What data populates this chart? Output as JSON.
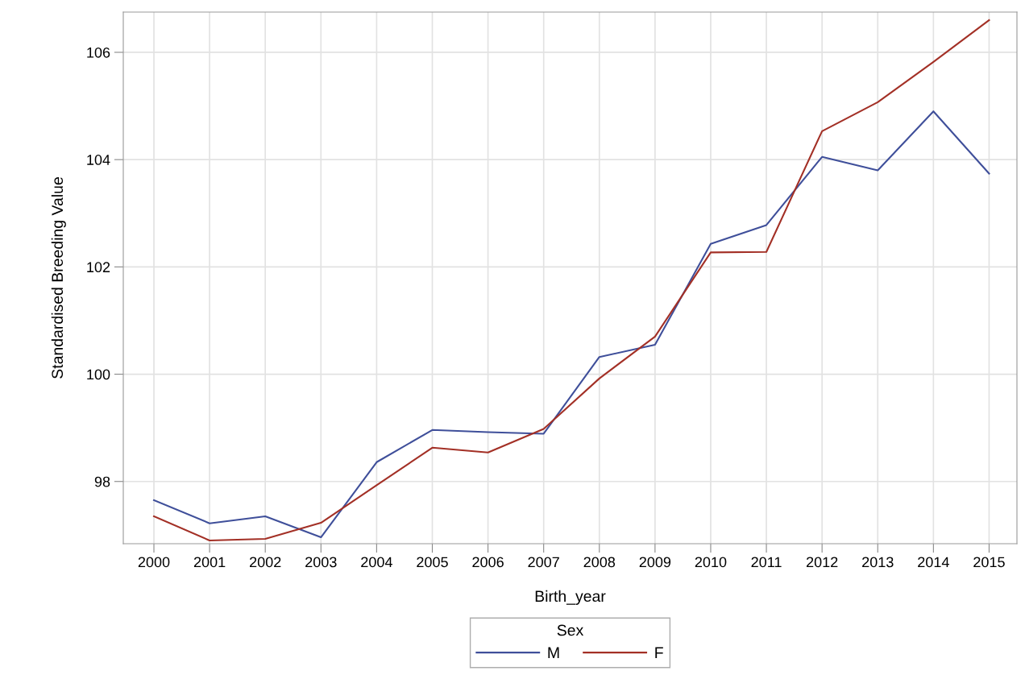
{
  "chart_data": {
    "type": "line",
    "xlabel": "Birth_year",
    "ylabel": "Standardised Breeding Value",
    "legend_title": "Sex",
    "categories": [
      "2000",
      "2001",
      "2002",
      "2003",
      "2004",
      "2005",
      "2006",
      "2007",
      "2008",
      "2009",
      "2010",
      "2011",
      "2012",
      "2013",
      "2014",
      "2015"
    ],
    "series": [
      {
        "name": "M",
        "color": "#3f4f9a",
        "values": [
          97.65,
          97.22,
          97.35,
          96.96,
          98.36,
          98.96,
          98.92,
          98.89,
          100.32,
          100.55,
          102.43,
          102.78,
          104.05,
          103.8,
          104.9,
          103.74
        ]
      },
      {
        "name": "F",
        "color": "#a33026",
        "values": [
          97.35,
          96.9,
          96.93,
          97.23,
          97.93,
          98.63,
          98.54,
          98.98,
          99.92,
          100.7,
          102.27,
          102.28,
          104.53,
          105.07,
          105.82,
          106.6
        ]
      }
    ],
    "ylim": [
      96.84,
      106.75
    ],
    "yticks": [
      98,
      100,
      102,
      104,
      106
    ],
    "grid": true,
    "legend": "bottom",
    "marker": "none",
    "line_style": "solid"
  }
}
